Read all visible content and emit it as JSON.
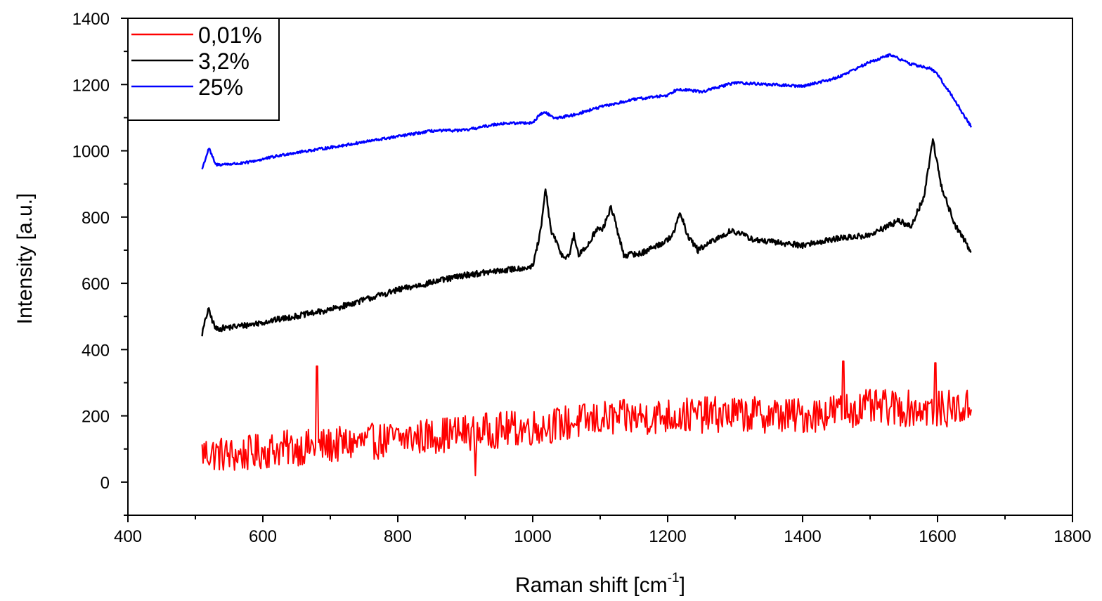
{
  "chart_data": {
    "type": "line",
    "xlabel": "Raman shift [cm",
    "xlabel_sup": "-1",
    "xlabel_suffix": "]",
    "ylabel": "Intensity [a.u.]",
    "xlim": [
      400,
      1800
    ],
    "ylim": [
      -100,
      1400
    ],
    "xticks": [
      400,
      600,
      800,
      1000,
      1200,
      1400,
      1600,
      1800
    ],
    "yticks": [
      0,
      200,
      400,
      600,
      800,
      1000,
      1200,
      1400
    ],
    "grid": false,
    "legend_position": "top-left",
    "series": [
      {
        "name": "0,01%",
        "color": "#ff0000",
        "style": "noisy",
        "x": [
          510,
          560,
          620,
          700,
          800,
          900,
          1000,
          1100,
          1200,
          1300,
          1400,
          1450,
          1500,
          1600,
          1650
        ],
        "y": [
          90,
          80,
          100,
          110,
          130,
          150,
          165,
          190,
          200,
          205,
          200,
          215,
          225,
          220,
          225
        ],
        "noise_amplitude": 55,
        "spikes": [
          [
            680,
            350
          ],
          [
            915,
            20
          ],
          [
            1460,
            365
          ],
          [
            1597,
            360
          ]
        ]
      },
      {
        "name": "3,2%",
        "color": "#000000",
        "style": "spectrum",
        "x": [
          510,
          519,
          530,
          580,
          700,
          800,
          900,
          1000,
          1012,
          1019,
          1027,
          1045,
          1055,
          1061,
          1068,
          1080,
          1095,
          1103,
          1109,
          1116,
          1124,
          1135,
          1160,
          1200,
          1210,
          1219,
          1228,
          1245,
          1265,
          1295,
          1330,
          1400,
          1450,
          1500,
          1543,
          1560,
          1580,
          1593,
          1606,
          1625,
          1640,
          1650
        ],
        "y": [
          448,
          522,
          462,
          475,
          520,
          580,
          625,
          650,
          760,
          885,
          760,
          678,
          688,
          745,
          685,
          710,
          765,
          760,
          790,
          832,
          770,
          685,
          690,
          730,
          760,
          815,
          750,
          700,
          725,
          760,
          730,
          715,
          735,
          745,
          790,
          770,
          860,
          1035,
          890,
          780,
          730,
          690
        ],
        "noise_amplitude": 9
      },
      {
        "name": "25%",
        "color": "#0000ff",
        "style": "spectrum",
        "x": [
          510,
          520,
          530,
          570,
          640,
          700,
          760,
          850,
          900,
          950,
          1000,
          1012,
          1020,
          1032,
          1060,
          1100,
          1150,
          1200,
          1215,
          1250,
          1300,
          1350,
          1400,
          1450,
          1500,
          1530,
          1560,
          1590,
          1600,
          1620,
          1650
        ],
        "y": [
          945,
          1008,
          958,
          962,
          992,
          1010,
          1030,
          1060,
          1062,
          1082,
          1085,
          1112,
          1115,
          1098,
          1108,
          1132,
          1155,
          1168,
          1187,
          1178,
          1206,
          1200,
          1195,
          1220,
          1268,
          1290,
          1262,
          1248,
          1230,
          1170,
          1072
        ],
        "noise_amplitude": 4
      }
    ]
  }
}
